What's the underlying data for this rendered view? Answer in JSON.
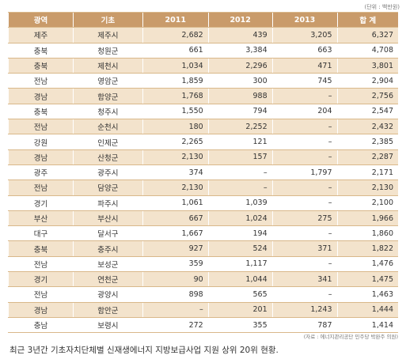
{
  "unit_note": "(단위 : 백만원)",
  "headers": [
    "광역",
    "기초",
    "2011",
    "2012",
    "2013",
    "합 계"
  ],
  "rows": [
    [
      "제주",
      "제주시",
      "2,682",
      "439",
      "3,205",
      "6,327"
    ],
    [
      "충북",
      "청원군",
      "661",
      "3,384",
      "663",
      "4,708"
    ],
    [
      "충북",
      "제천시",
      "1,034",
      "2,296",
      "471",
      "3,801"
    ],
    [
      "전남",
      "영암군",
      "1,859",
      "300",
      "745",
      "2,904"
    ],
    [
      "경남",
      "함양군",
      "1,768",
      "988",
      "–",
      "2,756"
    ],
    [
      "충북",
      "청주시",
      "1,550",
      "794",
      "204",
      "2,547"
    ],
    [
      "전남",
      "순천시",
      "180",
      "2,252",
      "–",
      "2,432"
    ],
    [
      "강원",
      "인제군",
      "2,265",
      "121",
      "–",
      "2,385"
    ],
    [
      "경남",
      "산청군",
      "2,130",
      "157",
      "–",
      "2,287"
    ],
    [
      "광주",
      "광주시",
      "374",
      "–",
      "1,797",
      "2,171"
    ],
    [
      "전남",
      "담양군",
      "2,130",
      "–",
      "–",
      "2,130"
    ],
    [
      "경기",
      "파주시",
      "1,061",
      "1,039",
      "–",
      "2,100"
    ],
    [
      "부산",
      "부산시",
      "667",
      "1,024",
      "275",
      "1,966"
    ],
    [
      "대구",
      "달서구",
      "1,667",
      "194",
      "–",
      "1,860"
    ],
    [
      "충북",
      "충주시",
      "927",
      "524",
      "371",
      "1,822"
    ],
    [
      "전남",
      "보성군",
      "359",
      "1,117",
      "–",
      "1,476"
    ],
    [
      "경기",
      "연천군",
      "90",
      "1,044",
      "341",
      "1,475"
    ],
    [
      "전남",
      "광양시",
      "898",
      "565",
      "–",
      "1,463"
    ],
    [
      "경남",
      "함안군",
      "–",
      "201",
      "1,243",
      "1,444"
    ],
    [
      "충남",
      "보령시",
      "272",
      "355",
      "787",
      "1,414"
    ]
  ],
  "source_note": "(자료 : 에너지관리공단 민주당 박완주 의원)",
  "caption": "최근 3년간 기초자치단체별 신재생에너지 지방보급사업 지원 상위 20위 현황."
}
